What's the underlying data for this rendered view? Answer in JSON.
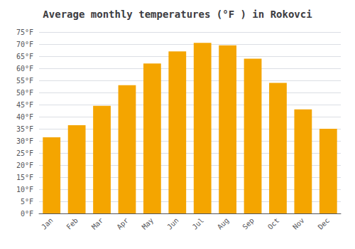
{
  "chart_data": {
    "type": "bar",
    "title": "Average monthly temperatures (°F ) in Rokovci",
    "categories": [
      "Jan",
      "Feb",
      "Mar",
      "Apr",
      "May",
      "Jun",
      "Jul",
      "Aug",
      "Sep",
      "Oct",
      "Nov",
      "Dec"
    ],
    "values": [
      31.5,
      36.5,
      44.5,
      53.0,
      62.0,
      67.0,
      70.5,
      69.5,
      64.0,
      54.0,
      43.0,
      35.0
    ],
    "color": "#F4A500",
    "ylim": [
      0,
      75
    ],
    "yticks": [
      {
        "value": 0,
        "label": "0°F"
      },
      {
        "value": 5,
        "label": "5°F"
      },
      {
        "value": 10,
        "label": "10°F"
      },
      {
        "value": 15,
        "label": "15°F"
      },
      {
        "value": 20,
        "label": "20°F"
      },
      {
        "value": 25,
        "label": "25°F"
      },
      {
        "value": 30,
        "label": "30°F"
      },
      {
        "value": 35,
        "label": "35°F"
      },
      {
        "value": 40,
        "label": "40°F"
      },
      {
        "value": 45,
        "label": "45°F"
      },
      {
        "value": 50,
        "label": "50°F"
      },
      {
        "value": 55,
        "label": "55°F"
      },
      {
        "value": 60,
        "label": "60°F"
      },
      {
        "value": 65,
        "label": "65°F"
      },
      {
        "value": 70,
        "label": "70°F"
      },
      {
        "value": 75,
        "label": "75°F"
      }
    ],
    "grid": true
  }
}
